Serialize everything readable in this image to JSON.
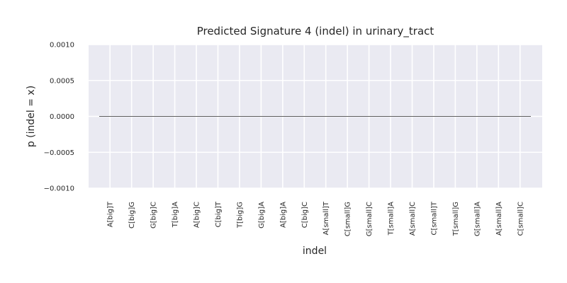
{
  "chart_data": {
    "type": "bar",
    "title": "Predicted Signature 4 (indel) in urinary_tract",
    "xlabel": "indel",
    "ylabel": "p (indel = x)",
    "categories": [
      "A[big]T",
      "C[big]G",
      "G[big]C",
      "T[big]A",
      "A[big]C",
      "C[big]T",
      "T[big]G",
      "G[big]A",
      "A[big]A",
      "C[big]C",
      "A[small]T",
      "C[small]G",
      "G[small]C",
      "T[small]A",
      "A[small]C",
      "C[small]T",
      "T[small]G",
      "G[small]A",
      "A[small]A",
      "C[small]C"
    ],
    "values": [
      0,
      0,
      0,
      0,
      0,
      0,
      0,
      0,
      0,
      0,
      0,
      0,
      0,
      0,
      0,
      0,
      0,
      0,
      0,
      0
    ],
    "ylim": [
      -0.001,
      0.001
    ],
    "yticks": [
      "0.0010",
      "0.0005",
      "0.0000",
      "−0.0005",
      "−0.0010"
    ],
    "ytick_values": [
      0.001,
      0.0005,
      0,
      -0.0005,
      -0.001
    ],
    "grid": true,
    "colors": {
      "plot_background": "#eaeaf2",
      "grid": "#ffffff",
      "baseline": "#262626"
    }
  }
}
